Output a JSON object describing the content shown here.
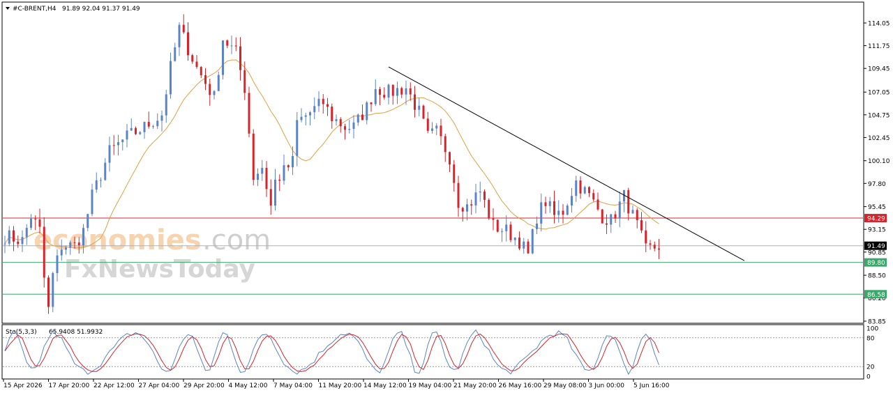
{
  "header": {
    "symbol": "#C-BRENT,H4",
    "ohlc": "91.89 92.04 91.37 91.49"
  },
  "watermark": {
    "brand_a": "economies",
    "brand_b": ".com",
    "brand_c": "FxNewsToday"
  },
  "colors": {
    "bull": "#5b84c8",
    "bear": "#d8232a",
    "ma": "#e0a040",
    "trendline": "#000000",
    "resistance": "#d8232a",
    "support": "#3aa86a",
    "current_price_tag": "#000000",
    "stoch_main": "#5b84c8",
    "stoch_signal": "#d8232a"
  },
  "chart_data": {
    "type": "candlestick",
    "symbol": "#C-BRENT",
    "timeframe": "H4",
    "y_ticks": [
      "114.05",
      "111.75",
      "109.45",
      "107.05",
      "104.75",
      "102.45",
      "100.10",
      "97.80",
      "95.45",
      "93.15",
      "90.85",
      "88.50",
      "86.20",
      "83.85"
    ],
    "x_ticks": [
      "15 Apr 2026",
      "17 Apr 20:00",
      "22 Apr 12:00",
      "27 Apr 04:00",
      "29 Apr 20:00",
      "4 May 12:00",
      "7 May 04:00",
      "11 May 20:00",
      "14 May 12:00",
      "19 May 04:00",
      "21 May 20:00",
      "26 May 16:00",
      "29 May 08:00",
      "3 Jun 00:00",
      "5 Jun 16:00"
    ],
    "ylim": [
      83.3,
      116.0
    ],
    "current_price": "91.49",
    "levels": [
      {
        "label": "94.29",
        "value": 94.29,
        "kind": "resistance"
      },
      {
        "label": "89.80",
        "value": 89.8,
        "kind": "support"
      },
      {
        "label": "86.58",
        "value": 86.58,
        "kind": "support"
      }
    ],
    "trendline": {
      "start": [
        88,
        109.6
      ],
      "end": [
        160,
        90.4
      ]
    },
    "anchors": [
      [
        0,
        92.5
      ],
      [
        4,
        92.0
      ],
      [
        6,
        94.5
      ],
      [
        8,
        93.0
      ],
      [
        9,
        88.2
      ],
      [
        10,
        85.0
      ],
      [
        11,
        88.5
      ],
      [
        13,
        91.5
      ],
      [
        16,
        91.5
      ],
      [
        18,
        93.0
      ],
      [
        20,
        96.5
      ],
      [
        24,
        101.0
      ],
      [
        28,
        102.5
      ],
      [
        32,
        103.5
      ],
      [
        36,
        104.8
      ],
      [
        38,
        109.5
      ],
      [
        40,
        113.5
      ],
      [
        42,
        111.5
      ],
      [
        44,
        109.5
      ],
      [
        46,
        108.0
      ],
      [
        48,
        106.5
      ],
      [
        50,
        112.5
      ],
      [
        53,
        111.0
      ],
      [
        55,
        107.5
      ],
      [
        57,
        98.5
      ],
      [
        59,
        99.5
      ],
      [
        61,
        95.5
      ],
      [
        62,
        98.0
      ],
      [
        66,
        100.0
      ],
      [
        67,
        104.0
      ],
      [
        70,
        105.0
      ],
      [
        73,
        106.0
      ],
      [
        75,
        104.5
      ],
      [
        78,
        103.5
      ],
      [
        80,
        103.5
      ],
      [
        83,
        105.5
      ],
      [
        85,
        107.5
      ],
      [
        88,
        107.0
      ],
      [
        92,
        107.5
      ],
      [
        95,
        105.0
      ],
      [
        97,
        102.5
      ],
      [
        99,
        103.0
      ],
      [
        102,
        100.5
      ],
      [
        104,
        96.0
      ],
      [
        106,
        95.5
      ],
      [
        109,
        97.0
      ],
      [
        112,
        93.5
      ],
      [
        115,
        93.0
      ],
      [
        118,
        92.0
      ],
      [
        120,
        90.5
      ],
      [
        122,
        94.5
      ],
      [
        124,
        96.0
      ],
      [
        126,
        94.5
      ],
      [
        128,
        95.0
      ],
      [
        131,
        98.0
      ],
      [
        134,
        96.5
      ],
      [
        137,
        94.5
      ],
      [
        139,
        94.0
      ],
      [
        142,
        96.5
      ],
      [
        145,
        93.5
      ],
      [
        147,
        91.0
      ],
      [
        150,
        91.5
      ]
    ],
    "indicator": {
      "name": "Sto(5,3,3)",
      "values": "65.9408 51.9932",
      "ylim": [
        0,
        100
      ],
      "ticks": [
        "100",
        "80",
        "20",
        "0"
      ],
      "levels": [
        80,
        20
      ]
    }
  }
}
